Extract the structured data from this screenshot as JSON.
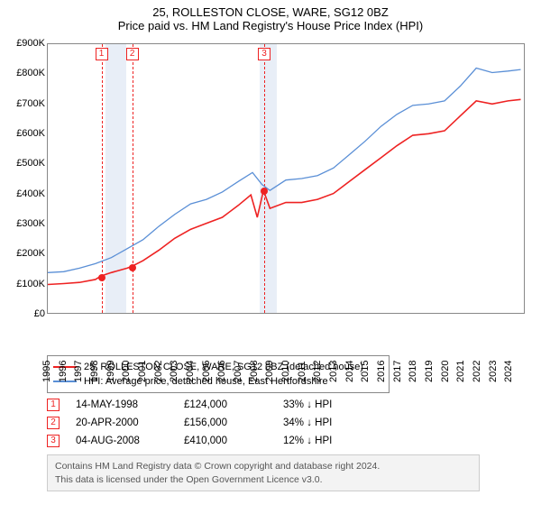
{
  "title": "25, ROLLESTON CLOSE, WARE, SG12 0BZ",
  "subtitle": "Price paid vs. HM Land Registry's House Price Index (HPI)",
  "chart": {
    "type": "line",
    "background_color": "#ffffff",
    "border_color": "#888888",
    "grid_color": "#e7e7e7",
    "recession_shade_color": "#e8eef7",
    "ylim": [
      0,
      900000
    ],
    "ytick_step": 100000,
    "ytick_labels": [
      "£0",
      "£100K",
      "£200K",
      "£300K",
      "£400K",
      "£500K",
      "£600K",
      "£700K",
      "£800K",
      "£900K"
    ],
    "x_min_year": 1995,
    "x_max_year": 2025,
    "x_ticks": [
      1995,
      1996,
      1997,
      1998,
      1999,
      2000,
      2001,
      2002,
      2003,
      2004,
      2005,
      2006,
      2007,
      2008,
      2009,
      2010,
      2011,
      2012,
      2013,
      2014,
      2015,
      2016,
      2017,
      2018,
      2019,
      2020,
      2021,
      2022,
      2023,
      2024
    ],
    "shaded_bands": [
      {
        "from": 1998.6,
        "to": 1999.9
      },
      {
        "from": 2008.3,
        "to": 2009.4
      }
    ],
    "series": [
      {
        "name": "25, ROLLESTON CLOSE, WARE, SG12 0BZ (detached house)",
        "color": "#ee2222",
        "line_width": 1.6,
        "points": [
          [
            1995.0,
            95000
          ],
          [
            1996.0,
            98000
          ],
          [
            1997.0,
            102000
          ],
          [
            1998.0,
            112000
          ],
          [
            1998.37,
            124000
          ],
          [
            1999.0,
            135000
          ],
          [
            2000.0,
            150000
          ],
          [
            2000.3,
            156000
          ],
          [
            2001.0,
            175000
          ],
          [
            2002.0,
            210000
          ],
          [
            2003.0,
            250000
          ],
          [
            2004.0,
            280000
          ],
          [
            2005.0,
            300000
          ],
          [
            2006.0,
            320000
          ],
          [
            2007.0,
            360000
          ],
          [
            2007.8,
            395000
          ],
          [
            2008.2,
            320000
          ],
          [
            2008.59,
            410000
          ],
          [
            2009.0,
            350000
          ],
          [
            2010.0,
            370000
          ],
          [
            2011.0,
            370000
          ],
          [
            2012.0,
            380000
          ],
          [
            2013.0,
            400000
          ],
          [
            2014.0,
            440000
          ],
          [
            2015.0,
            480000
          ],
          [
            2016.0,
            520000
          ],
          [
            2017.0,
            560000
          ],
          [
            2018.0,
            595000
          ],
          [
            2019.0,
            600000
          ],
          [
            2020.0,
            610000
          ],
          [
            2021.0,
            660000
          ],
          [
            2022.0,
            710000
          ],
          [
            2023.0,
            700000
          ],
          [
            2024.0,
            710000
          ],
          [
            2024.8,
            715000
          ]
        ]
      },
      {
        "name": "HPI: Average price, detached house, East Hertfordshire",
        "color": "#5a8fd6",
        "line_width": 1.3,
        "points": [
          [
            1995.0,
            135000
          ],
          [
            1996.0,
            138000
          ],
          [
            1997.0,
            150000
          ],
          [
            1998.0,
            165000
          ],
          [
            1999.0,
            185000
          ],
          [
            2000.0,
            215000
          ],
          [
            2001.0,
            245000
          ],
          [
            2002.0,
            290000
          ],
          [
            2003.0,
            330000
          ],
          [
            2004.0,
            365000
          ],
          [
            2005.0,
            380000
          ],
          [
            2006.0,
            405000
          ],
          [
            2007.0,
            440000
          ],
          [
            2007.9,
            470000
          ],
          [
            2008.5,
            430000
          ],
          [
            2009.0,
            410000
          ],
          [
            2010.0,
            445000
          ],
          [
            2011.0,
            450000
          ],
          [
            2012.0,
            460000
          ],
          [
            2013.0,
            485000
          ],
          [
            2014.0,
            530000
          ],
          [
            2015.0,
            575000
          ],
          [
            2016.0,
            625000
          ],
          [
            2017.0,
            665000
          ],
          [
            2018.0,
            695000
          ],
          [
            2019.0,
            700000
          ],
          [
            2020.0,
            710000
          ],
          [
            2021.0,
            760000
          ],
          [
            2022.0,
            820000
          ],
          [
            2023.0,
            805000
          ],
          [
            2024.0,
            810000
          ],
          [
            2024.8,
            815000
          ]
        ]
      }
    ],
    "sale_markers": [
      {
        "num": "1",
        "year": 1998.37,
        "price": 124000
      },
      {
        "num": "2",
        "year": 2000.3,
        "price": 156000
      },
      {
        "num": "3",
        "year": 2008.59,
        "price": 410000
      }
    ],
    "marker_dot_color": "#ee2222",
    "label_fontsize": 11
  },
  "legend": {
    "item1": "25, ROLLESTON CLOSE, WARE, SG12 0BZ (detached house)",
    "item2": "HPI: Average price, detached house, East Hertfordshire"
  },
  "sales": [
    {
      "num": "1",
      "date": "14-MAY-1998",
      "price": "£124,000",
      "diff": "33% ↓ HPI"
    },
    {
      "num": "2",
      "date": "20-APR-2000",
      "price": "£156,000",
      "diff": "34% ↓ HPI"
    },
    {
      "num": "3",
      "date": "04-AUG-2008",
      "price": "£410,000",
      "diff": "12% ↓ HPI"
    }
  ],
  "footnote_line1": "Contains HM Land Registry data © Crown copyright and database right 2024.",
  "footnote_line2": "This data is licensed under the Open Government Licence v3.0."
}
